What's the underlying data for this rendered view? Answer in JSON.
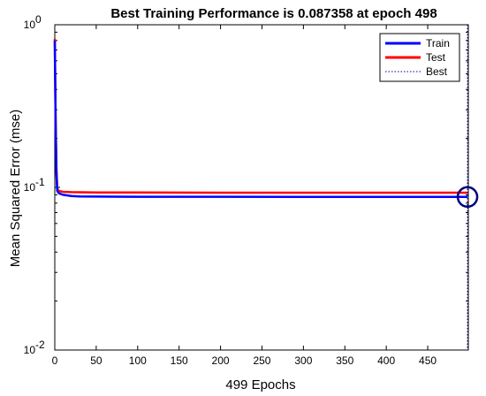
{
  "chart_data": {
    "type": "line",
    "title": "Best Training Performance is 0.087358 at epoch 498",
    "xlabel": "499 Epochs",
    "ylabel": "Mean Squared Error  (mse)",
    "xlim": [
      0,
      499
    ],
    "ylim": [
      0.01,
      1
    ],
    "yscale": "log",
    "x_ticks": [
      0,
      50,
      100,
      150,
      200,
      250,
      300,
      350,
      400,
      450
    ],
    "x_tick_labels": [
      "0",
      "50",
      "100",
      "150",
      "200",
      "250",
      "300",
      "350",
      "400",
      "450"
    ],
    "y_ticks": [
      0.01,
      0.1,
      1
    ],
    "y_tick_labels": [
      {
        "base": "10",
        "exp": "-2"
      },
      {
        "base": "10",
        "exp": "-1"
      },
      {
        "base": "10",
        "exp": "0"
      }
    ],
    "grid": false,
    "legend_position": "top-right",
    "series": [
      {
        "name": "Train",
        "color": "#0000ff",
        "x": [
          0,
          1,
          2,
          3,
          5,
          10,
          20,
          30,
          50,
          100,
          200,
          300,
          400,
          498
        ],
        "y": [
          0.8,
          0.25,
          0.12,
          0.095,
          0.092,
          0.09,
          0.0885,
          0.088,
          0.0878,
          0.0876,
          0.0875,
          0.0874,
          0.08737,
          0.087358
        ]
      },
      {
        "name": "Test",
        "color": "#ff0000",
        "x": [
          0,
          1,
          2,
          3,
          5,
          10,
          20,
          50,
          100,
          200,
          300,
          400,
          498
        ],
        "y": [
          0.82,
          0.26,
          0.13,
          0.098,
          0.095,
          0.094,
          0.0935,
          0.093,
          0.093,
          0.0928,
          0.0928,
          0.0928,
          0.0928
        ]
      }
    ],
    "best": {
      "name": "Best",
      "epoch": 498,
      "value": 0.087358,
      "line_color": "#0000aa",
      "marker_color": "#000080"
    }
  }
}
